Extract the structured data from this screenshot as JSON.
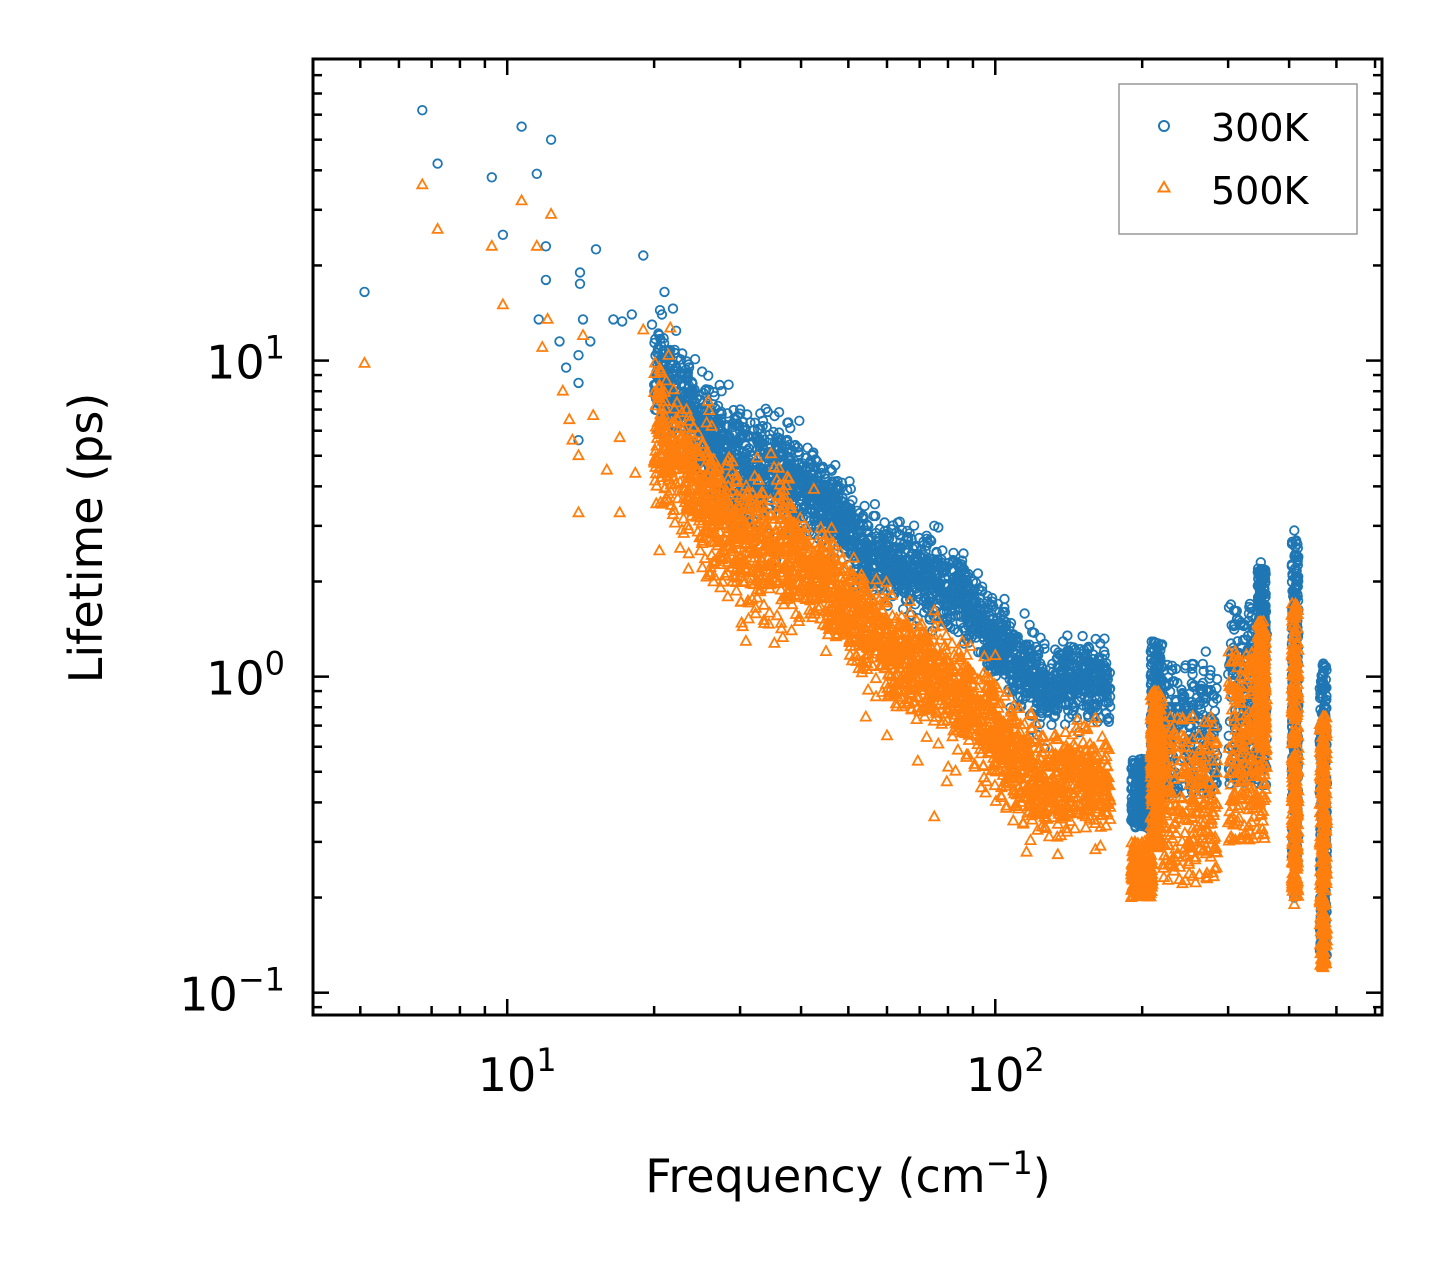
{
  "chart_data": {
    "type": "scatter",
    "title": "",
    "xlabel": "Frequency (cm",
    "xlabel_sup": "−1",
    "xlabel_close": ")",
    "ylabel": "Lifetime (ps)",
    "xscale": "log",
    "yscale": "log",
    "xlim": [
      4,
      620
    ],
    "ylim": [
      0.085,
      90
    ],
    "x_ticks": [
      {
        "value": 10,
        "base": "10",
        "exp": "1"
      },
      {
        "value": 100,
        "base": "10",
        "exp": "2"
      }
    ],
    "y_ticks": [
      {
        "value": 0.1,
        "base": "10",
        "exp": "−1"
      },
      {
        "value": 1,
        "base": "10",
        "exp": "0"
      },
      {
        "value": 10,
        "base": "10",
        "exp": "1"
      }
    ],
    "legend_position": "top-right",
    "series": [
      {
        "name": "300K",
        "marker": "circle",
        "color": "#1f77b4",
        "highlight_points": [
          [
            5.1,
            16.5
          ],
          [
            6.7,
            62
          ],
          [
            7.2,
            42
          ],
          [
            9.3,
            38
          ],
          [
            9.8,
            25
          ],
          [
            10.7,
            55
          ],
          [
            11.5,
            39
          ],
          [
            12.3,
            50
          ],
          [
            12.0,
            23
          ],
          [
            12.0,
            18
          ],
          [
            11.6,
            13.5
          ],
          [
            12.8,
            11.5
          ],
          [
            13.2,
            9.5
          ],
          [
            14.0,
            10.4
          ],
          [
            14.0,
            8.5
          ],
          [
            14.0,
            5.6
          ],
          [
            14.1,
            19
          ],
          [
            14.1,
            17.5
          ],
          [
            14.3,
            13.5
          ],
          [
            14.8,
            11.5
          ],
          [
            15.2,
            22.5
          ],
          [
            16.5,
            13.5
          ],
          [
            17.2,
            13.3
          ],
          [
            18.0,
            14
          ],
          [
            19.0,
            21.5
          ],
          [
            19.8,
            13
          ],
          [
            21.0,
            16.5
          ],
          [
            20.4,
            11
          ],
          [
            21.5,
            10.5
          ],
          [
            27.5,
            8
          ],
          [
            30.0,
            7
          ],
          [
            33.0,
            6.8
          ],
          [
            36.0,
            5
          ],
          [
            75.0,
            3
          ],
          [
            90.0,
            2
          ],
          [
            72.0,
            2.5
          ],
          [
            270.0,
            1.2
          ],
          [
            350.0,
            2.3
          ],
          [
            410.0,
            2.9
          ],
          [
            410.0,
            0.2
          ],
          [
            470.0,
            1.1
          ]
        ]
      },
      {
        "name": "500K",
        "marker": "triangle",
        "color": "#ff7f0e",
        "highlight_points": [
          [
            5.1,
            9.8
          ],
          [
            6.7,
            36
          ],
          [
            7.2,
            26
          ],
          [
            9.3,
            23
          ],
          [
            9.8,
            15
          ],
          [
            10.7,
            32
          ],
          [
            11.5,
            23
          ],
          [
            12.3,
            29
          ],
          [
            11.8,
            11
          ],
          [
            12.1,
            13.5
          ],
          [
            13.0,
            8
          ],
          [
            13.4,
            6.5
          ],
          [
            13.6,
            5.6
          ],
          [
            14.0,
            5.0
          ],
          [
            14.0,
            3.3
          ],
          [
            14.3,
            12
          ],
          [
            15.0,
            6.7
          ],
          [
            16.0,
            4.5
          ],
          [
            17.0,
            3.3
          ],
          [
            17.0,
            5.7
          ],
          [
            18.3,
            4.4
          ],
          [
            19.0,
            12.5
          ],
          [
            20.0,
            4.8
          ],
          [
            20.5,
            2.5
          ],
          [
            45.0,
            1.2
          ],
          [
            60.0,
            0.65
          ],
          [
            75.0,
            0.36
          ],
          [
            140.0,
            0.33
          ],
          [
            190.0,
            0.2
          ],
          [
            410.0,
            0.19
          ],
          [
            470.0,
            0.12
          ]
        ]
      }
    ]
  }
}
